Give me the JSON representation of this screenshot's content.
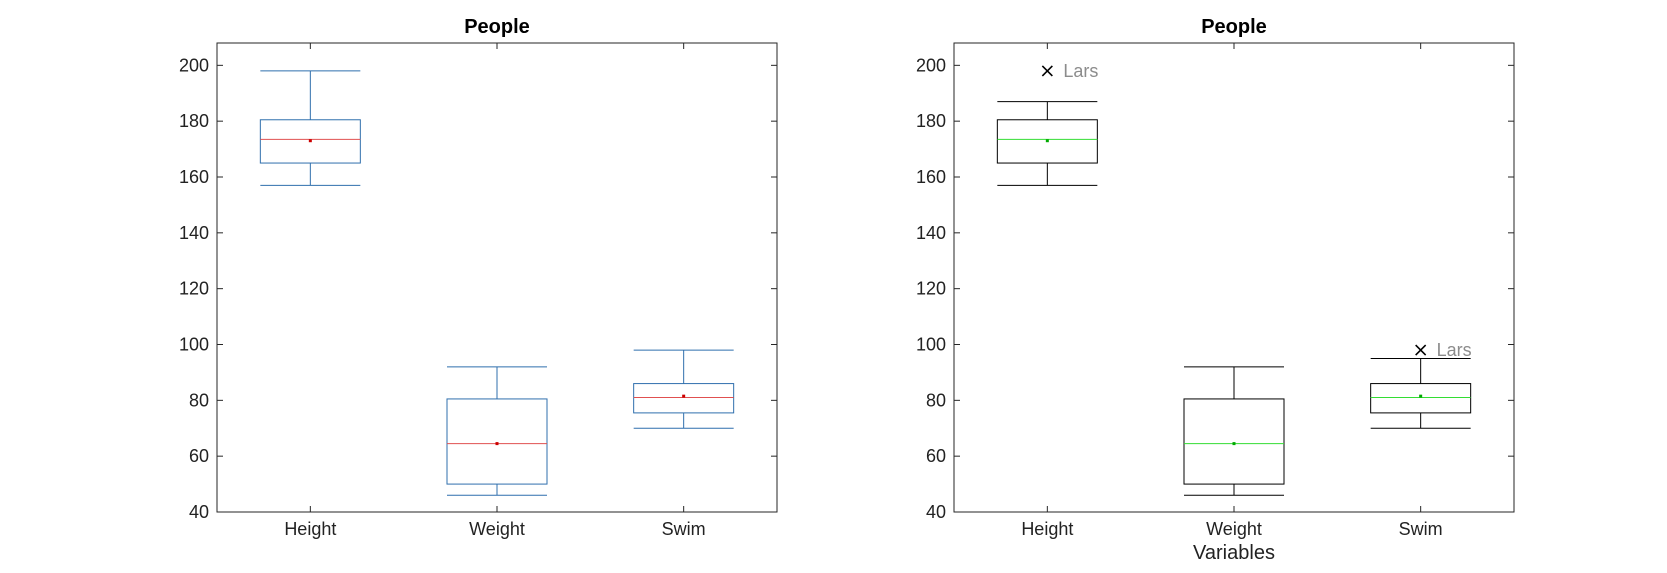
{
  "chart_data": [
    {
      "type": "box",
      "title": "People",
      "xlabel": "",
      "ylabel": "",
      "ylim": [
        40,
        208
      ],
      "yticks": [
        40,
        60,
        80,
        100,
        120,
        140,
        160,
        180,
        200
      ],
      "categories": [
        "Height",
        "Weight",
        "Swim"
      ],
      "colors": {
        "box": "#2f6fad",
        "median": "#e05050",
        "mean": "#cc0000",
        "outlier": "#000000"
      },
      "boxes": [
        {
          "category": "Height",
          "whisker_low": 157,
          "q1": 165,
          "median": 173.5,
          "q3": 180.5,
          "whisker_high": 198,
          "mean": 173,
          "outliers": []
        },
        {
          "category": "Weight",
          "whisker_low": 46,
          "q1": 50,
          "median": 64.5,
          "q3": 80.5,
          "whisker_high": 92,
          "mean": 64.5,
          "outliers": []
        },
        {
          "category": "Swim",
          "whisker_low": 70,
          "q1": 75.5,
          "median": 81,
          "q3": 86,
          "whisker_high": 98,
          "mean": 81.5,
          "outliers": []
        }
      ]
    },
    {
      "type": "box",
      "title": "People",
      "xlabel": "Variables",
      "ylabel": "",
      "ylim": [
        40,
        208
      ],
      "yticks": [
        40,
        60,
        80,
        100,
        120,
        140,
        160,
        180,
        200
      ],
      "categories": [
        "Height",
        "Weight",
        "Swim"
      ],
      "colors": {
        "box": "#000000",
        "median": "#33dd33",
        "mean": "#00aa00",
        "outlier": "#000000"
      },
      "boxes": [
        {
          "category": "Height",
          "whisker_low": 157,
          "q1": 165,
          "median": 173.5,
          "q3": 180.5,
          "whisker_high": 187,
          "mean": 173,
          "outliers": [
            {
              "value": 198,
              "label": "Lars"
            }
          ]
        },
        {
          "category": "Weight",
          "whisker_low": 46,
          "q1": 50,
          "median": 64.5,
          "q3": 80.5,
          "whisker_high": 92,
          "mean": 64.5,
          "outliers": []
        },
        {
          "category": "Swim",
          "whisker_low": 70,
          "q1": 75.5,
          "median": 81,
          "q3": 86,
          "whisker_high": 95,
          "mean": 81.5,
          "outliers": [
            {
              "value": 98,
              "label": "Lars"
            }
          ]
        }
      ]
    }
  ]
}
